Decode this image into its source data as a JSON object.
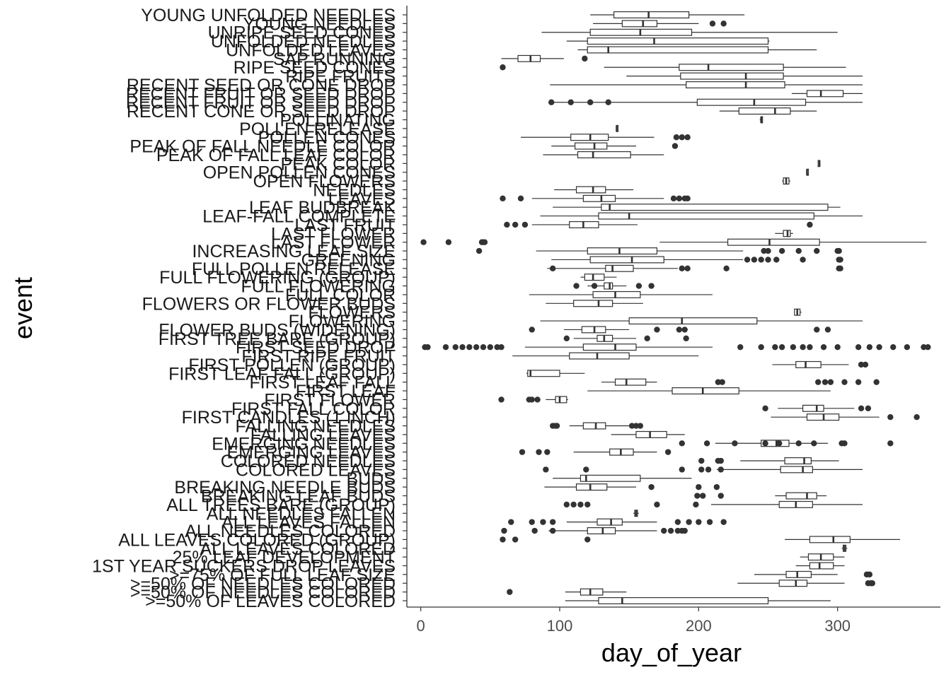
{
  "chart_data": {
    "type": "boxplot",
    "orientation": "horizontal",
    "xlabel": "day_of_year",
    "ylabel": "event",
    "xlim": [
      -10,
      374
    ],
    "x_ticks": [
      0,
      100,
      200,
      300
    ],
    "grid": false,
    "colors": {
      "box_stroke": "#333333",
      "box_fill": "#ffffff",
      "outlier": "#333333",
      "axis": "#333333"
    },
    "categories": [
      "YOUNG UNFOLDED NEEDLES",
      "YOUNG NEEDLES",
      "UNRIPE SEED CONES",
      "UNFOLDED NEEDLES",
      "UNFOLDED LEAVES",
      "SAP RUNNING",
      "RIPE SEED CONES",
      "RIPE FRUITS",
      "RECENT SEED OR CONE DROP",
      "RECENT FRUIT OR SEED DROP",
      "RECENT FRUIT OR SEED DROP",
      "RECENT CONE OR SEED DROP",
      "POLLINATING",
      "POLLEN RELEASE",
      "POLLEN CONES",
      "PEAK OF FALL NEEDLE COLOR",
      "PEAK OF FALL LEAF COLOR",
      "PEAK COLOR",
      "OPEN POLLEN CONES",
      "OPEN FLOWERS",
      "NEEDLES",
      "LEAVES",
      "LEAF BUDBREAK",
      "LEAF-FALL COMPLETE",
      "LAST FRUIT",
      "LAST FLOWER",
      "LAST FLOWER",
      "INCREASING LEAF SIZE",
      "GREENING",
      "FULL POLLEN RELEASE",
      "FULL FLOWERING (GROUP)",
      "FULL FLOWERING",
      "FULL COLOR",
      "FLOWERS OR FLOWER BUDS",
      "FLOWERS",
      "FLOWERING",
      "FLOWER BUDS (WIDENING)",
      "FIRST TREE BARE (GROUP)",
      "FIRST SEED DROP",
      "FIRST RIPE FRUIT",
      "FIRST POLLEN (GROUP)",
      "FIRST LEAF FALL (GROUP)",
      "FIRST LEAF FALL",
      "FIRST LEAF",
      "FIRST FLOWER",
      "FIRST FALL COLOR",
      "FIRST CANDLES (1 INCH)",
      "FALLING NEEDLES",
      "FALLING LEAVES",
      "EMERGING NEEDLES",
      "EMERGING LEAVES",
      "COLORED NEEDLES",
      "COLORED LEAVES",
      "BUDS",
      "BREAKING NEEDLE BUDS",
      "BREAKING LEAF BUDS",
      "ALL TREES BARE (GROUP)",
      "ALL NEEDLES FALLEN",
      "ALL LEAVES FALLEN",
      "ALL NEEDLES COLORED",
      "ALL LEAVES COLORED (GROUP)",
      "ALL LEAVES COLORED",
      "25% LEAF DEVELOPMENT",
      "1ST YEAR SUCKERS DROP LEAVES",
      ">=75% OF FULL LEAF SIZE",
      ">=50% OF NEEDLES COLORED",
      ">=50% OF NEEDLES COLORED",
      ">=50% OF LEAVES COLORED"
    ],
    "boxes": [
      {
        "whisker_low": 122,
        "q1": 139,
        "median": 164,
        "q3": 193,
        "whisker_high": 233,
        "outliers": []
      },
      {
        "whisker_low": 124,
        "q1": 145,
        "median": 160,
        "q3": 170,
        "whisker_high": 200,
        "outliers": [
          210,
          218
        ]
      },
      {
        "whisker_low": 87,
        "q1": 122,
        "median": 158,
        "q3": 195,
        "whisker_high": 300,
        "outliers": []
      },
      {
        "whisker_low": 105,
        "q1": 120,
        "median": 168,
        "q3": 250,
        "whisker_high": 251,
        "outliers": []
      },
      {
        "whisker_low": 113,
        "q1": 120,
        "median": 135,
        "q3": 250,
        "whisker_high": 285,
        "outliers": []
      },
      {
        "whisker_low": 58,
        "q1": 70,
        "median": 79,
        "q3": 86,
        "whisker_high": 103,
        "outliers": [
          118
        ]
      },
      {
        "whisker_low": 132,
        "q1": 186,
        "median": 207,
        "q3": 261,
        "whisker_high": 306,
        "outliers": [
          59
        ]
      },
      {
        "whisker_low": 148,
        "q1": 187,
        "median": 234,
        "q3": 261,
        "whisker_high": 318,
        "outliers": []
      },
      {
        "whisker_low": 93,
        "q1": 191,
        "median": 234,
        "q3": 262,
        "whisker_high": 318,
        "outliers": []
      },
      {
        "whisker_low": 267,
        "q1": 278,
        "median": 288,
        "q3": 304,
        "whisker_high": 318,
        "outliers": []
      },
      {
        "whisker_low": 94,
        "q1": 199,
        "median": 240,
        "q3": 277,
        "whisker_high": 318,
        "outliers": [
          94,
          108,
          122,
          135
        ]
      },
      {
        "whisker_low": 215,
        "q1": 229,
        "median": 255,
        "q3": 266,
        "whisker_high": 285,
        "outliers": []
      },
      {
        "whisker_low": 244,
        "q1": 245,
        "median": 245,
        "q3": 246,
        "whisker_high": 246,
        "outliers": []
      },
      {
        "whisker_low": 141,
        "q1": 141,
        "median": 141,
        "q3": 142,
        "whisker_high": 142,
        "outliers": []
      },
      {
        "whisker_low": 72,
        "q1": 108,
        "median": 122,
        "q3": 135,
        "whisker_high": 168,
        "outliers": [
          184,
          188,
          192
        ]
      },
      {
        "whisker_low": 94,
        "q1": 111,
        "median": 125,
        "q3": 134,
        "whisker_high": 155,
        "outliers": [
          183
        ]
      },
      {
        "whisker_low": 88,
        "q1": 113,
        "median": 124,
        "q3": 151,
        "whisker_high": 175,
        "outliers": []
      },
      {
        "whisker_low": 286,
        "q1": 286,
        "median": 287,
        "q3": 287,
        "whisker_high": 287,
        "outliers": []
      },
      {
        "whisker_low": 278,
        "q1": 278,
        "median": 278,
        "q3": 279,
        "whisker_high": 279,
        "outliers": []
      },
      {
        "whisker_low": 260,
        "q1": 261,
        "median": 263,
        "q3": 265,
        "whisker_high": 266,
        "outliers": []
      },
      {
        "whisker_low": 96,
        "q1": 112,
        "median": 124,
        "q3": 133,
        "whisker_high": 153,
        "outliers": []
      },
      {
        "whisker_low": 80,
        "q1": 117,
        "median": 130,
        "q3": 140,
        "whisker_high": 175,
        "outliers": [
          59,
          72,
          182,
          186,
          190,
          192
        ]
      },
      {
        "whisker_low": 95,
        "q1": 130,
        "median": 136,
        "q3": 293,
        "whisker_high": 302,
        "outliers": []
      },
      {
        "whisker_low": 86,
        "q1": 128,
        "median": 150,
        "q3": 283,
        "whisker_high": 318,
        "outliers": []
      },
      {
        "whisker_low": 80,
        "q1": 107,
        "median": 117,
        "q3": 128,
        "whisker_high": 156,
        "outliers": [
          62,
          68,
          75,
          280
        ]
      },
      {
        "whisker_low": 255,
        "q1": 261,
        "median": 264,
        "q3": 266,
        "whisker_high": 268,
        "outliers": []
      },
      {
        "whisker_low": 172,
        "q1": 221,
        "median": 251,
        "q3": 287,
        "whisker_high": 364,
        "outliers": [
          2,
          20,
          44,
          45,
          46
        ]
      },
      {
        "whisker_low": 83,
        "q1": 120,
        "median": 143,
        "q3": 170,
        "whisker_high": 232,
        "outliers": [
          42,
          247,
          250,
          260,
          272,
          285,
          300,
          301
        ]
      },
      {
        "whisker_low": 94,
        "q1": 122,
        "median": 152,
        "q3": 175,
        "whisker_high": 232,
        "outliers": [
          235,
          240,
          245,
          250,
          256,
          275,
          301,
          302
        ]
      },
      {
        "whisker_low": 91,
        "q1": 133,
        "median": 138,
        "q3": 153,
        "whisker_high": 185,
        "outliers": [
          95,
          188,
          192,
          220,
          301,
          302
        ]
      },
      {
        "whisker_low": 115,
        "q1": 118,
        "median": 124,
        "q3": 132,
        "whisker_high": 141,
        "outliers": []
      },
      {
        "whisker_low": 120,
        "q1": 132,
        "median": 136,
        "q3": 138,
        "whisker_high": 148,
        "outliers": [
          112,
          125,
          157,
          166
        ]
      },
      {
        "whisker_low": 78,
        "q1": 124,
        "median": 140,
        "q3": 158,
        "whisker_high": 210,
        "outliers": []
      },
      {
        "whisker_low": 90,
        "q1": 110,
        "median": 128,
        "q3": 138,
        "whisker_high": 160,
        "outliers": []
      },
      {
        "whisker_low": 269,
        "q1": 269,
        "median": 271,
        "q3": 273,
        "whisker_high": 274,
        "outliers": []
      },
      {
        "whisker_low": 86,
        "q1": 150,
        "median": 188,
        "q3": 242,
        "whisker_high": 318,
        "outliers": []
      },
      {
        "whisker_low": 103,
        "q1": 116,
        "median": 125,
        "q3": 133,
        "whisker_high": 150,
        "outliers": [
          80,
          170,
          186,
          190,
          285,
          293
        ]
      },
      {
        "whisker_low": 110,
        "q1": 127,
        "median": 132,
        "q3": 138,
        "whisker_high": 155,
        "outliers": [
          105,
          163,
          191
        ]
      },
      {
        "whisker_low": 75,
        "q1": 117,
        "median": 140,
        "q3": 155,
        "whisker_high": 210,
        "outliers": [
          3,
          5,
          18,
          25,
          30,
          35,
          40,
          45,
          50,
          55,
          58,
          230,
          245,
          255,
          260,
          268,
          275,
          280,
          290,
          300,
          315,
          323,
          330,
          340,
          350,
          362,
          365
        ]
      },
      {
        "whisker_low": 66,
        "q1": 107,
        "median": 127,
        "q3": 150,
        "whisker_high": 200,
        "outliers": []
      },
      {
        "whisker_low": 253,
        "q1": 270,
        "median": 277,
        "q3": 288,
        "whisker_high": 308,
        "outliers": [
          317,
          320
        ]
      },
      {
        "whisker_low": 76,
        "q1": 77,
        "median": 79,
        "q3": 100,
        "whisker_high": 118,
        "outliers": []
      },
      {
        "whisker_low": 130,
        "q1": 140,
        "median": 148,
        "q3": 162,
        "whisker_high": 170,
        "outliers": [
          214,
          217,
          286,
          291,
          295,
          305,
          315,
          328
        ]
      },
      {
        "whisker_low": 120,
        "q1": 181,
        "median": 203,
        "q3": 229,
        "whisker_high": 295,
        "outliers": []
      },
      {
        "whisker_low": 90,
        "q1": 97,
        "median": 100,
        "q3": 105,
        "whisker_high": 106,
        "outliers": [
          58,
          78,
          80,
          84
        ]
      },
      {
        "whisker_low": 257,
        "q1": 275,
        "median": 285,
        "q3": 290,
        "whisker_high": 312,
        "outliers": [
          248,
          317,
          322
        ]
      },
      {
        "whisker_low": 252,
        "q1": 278,
        "median": 290,
        "q3": 301,
        "whisker_high": 330,
        "outliers": [
          338,
          357
        ]
      },
      {
        "whisker_low": 107,
        "q1": 117,
        "median": 126,
        "q3": 133,
        "whisker_high": 150,
        "outliers": [
          95,
          97,
          98,
          152,
          155,
          158
        ]
      },
      {
        "whisker_low": 137,
        "q1": 155,
        "median": 165,
        "q3": 177,
        "whisker_high": 190,
        "outliers": []
      },
      {
        "whisker_low": 212,
        "q1": 245,
        "median": 256,
        "q3": 265,
        "whisker_high": 293,
        "outliers": [
          188,
          206,
          226,
          248,
          258,
          272,
          283,
          303,
          305,
          338
        ]
      },
      {
        "whisker_low": 110,
        "q1": 136,
        "median": 144,
        "q3": 153,
        "whisker_high": 170,
        "outliers": [
          73,
          85,
          91,
          178
        ]
      },
      {
        "whisker_low": 230,
        "q1": 262,
        "median": 276,
        "q3": 281,
        "whisker_high": 301,
        "outliers": [
          202,
          214,
          216
        ]
      },
      {
        "whisker_low": 213,
        "q1": 259,
        "median": 275,
        "q3": 282,
        "whisker_high": 318,
        "outliers": [
          90,
          119,
          188,
          202,
          207,
          216
        ]
      },
      {
        "whisker_low": 95,
        "q1": 115,
        "median": 119,
        "q3": 158,
        "whisker_high": 195,
        "outliers": []
      },
      {
        "whisker_low": 89,
        "q1": 112,
        "median": 122,
        "q3": 134,
        "whisker_high": 155,
        "outliers": [
          166,
          200,
          213
        ]
      },
      {
        "whisker_low": 255,
        "q1": 263,
        "median": 278,
        "q3": 285,
        "whisker_high": 292,
        "outliers": [
          199,
          203,
          216
        ]
      },
      {
        "whisker_low": 209,
        "q1": 258,
        "median": 270,
        "q3": 282,
        "whisker_high": 318,
        "outliers": [
          105,
          110,
          115,
          120,
          170,
          198
        ]
      },
      {
        "whisker_low": 153,
        "q1": 154,
        "median": 155,
        "q3": 156,
        "whisker_high": 157,
        "outliers": []
      },
      {
        "whisker_low": 105,
        "q1": 127,
        "median": 137,
        "q3": 145,
        "whisker_high": 170,
        "outliers": [
          65,
          80,
          88,
          95,
          185,
          193,
          200,
          208,
          218
        ]
      },
      {
        "whisker_low": 92,
        "q1": 120,
        "median": 131,
        "q3": 140,
        "whisker_high": 170,
        "outliers": [
          60,
          82,
          95,
          175,
          180,
          185,
          188,
          190
        ]
      },
      {
        "whisker_low": 262,
        "q1": 280,
        "median": 297,
        "q3": 309,
        "whisker_high": 345,
        "outliers": [
          59,
          68,
          120
        ]
      },
      {
        "whisker_low": 303,
        "q1": 304,
        "median": 305,
        "q3": 306,
        "whisker_high": 307,
        "outliers": []
      },
      {
        "whisker_low": 273,
        "q1": 279,
        "median": 288,
        "q3": 297,
        "whisker_high": 305,
        "outliers": []
      },
      {
        "whisker_low": 270,
        "q1": 280,
        "median": 287,
        "q3": 297,
        "whisker_high": 305,
        "outliers": []
      },
      {
        "whisker_low": 240,
        "q1": 263,
        "median": 271,
        "q3": 281,
        "whisker_high": 300,
        "outliers": [
          321,
          323
        ]
      },
      {
        "whisker_low": 228,
        "q1": 258,
        "median": 270,
        "q3": 278,
        "whisker_high": 305,
        "outliers": [
          322,
          324,
          325
        ]
      },
      {
        "whisker_low": 104,
        "q1": 115,
        "median": 122,
        "q3": 131,
        "whisker_high": 148,
        "outliers": [
          64
        ]
      },
      {
        "whisker_low": 104,
        "q1": 128,
        "median": 145,
        "q3": 250,
        "whisker_high": 295,
        "outliers": []
      }
    ]
  }
}
